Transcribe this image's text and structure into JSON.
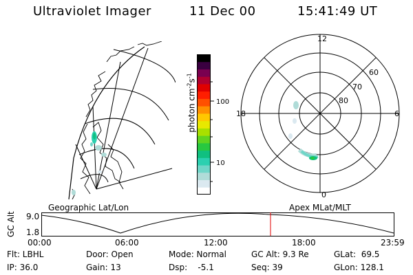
{
  "header": {
    "instrument": "Ultraviolet Imager",
    "date": "11 Dec 00",
    "time": "15:41:49 UT"
  },
  "left_panel": {
    "caption": "Geographic Lat/Lon"
  },
  "right_panel": {
    "caption": "Apex MLat/MLT",
    "mlt_labels": {
      "top": "12",
      "left": "18",
      "right": "6",
      "bottom": "0"
    },
    "lat_labels": [
      "60",
      "70",
      "80"
    ]
  },
  "colorbar": {
    "label_main": "photon cm",
    "label_exp1": "-2",
    "label_mid": "s",
    "label_exp2": "-1",
    "ticks": [
      "100",
      "10"
    ],
    "colors": [
      "#ffffff",
      "#dbe9f0",
      "#b0dcd8",
      "#6fd6c8",
      "#2bd0b0",
      "#10c080",
      "#28c840",
      "#60d420",
      "#a8e000",
      "#e8e800",
      "#ffc800",
      "#ff9000",
      "#ff5000",
      "#ff1e00",
      "#e00000",
      "#b00030",
      "#7a0050",
      "#3a0040",
      "#000000"
    ]
  },
  "altitude_plot": {
    "ylabel": "GC Alt",
    "ymax_label": "9.0",
    "ymin_label": "1.8",
    "xticks": [
      "00:00",
      "06:00",
      "12:00",
      "18:00",
      "23:59"
    ],
    "marker_color": "#e00000"
  },
  "status": {
    "row1": [
      {
        "name": "flt",
        "text": "Flt: LBHL"
      },
      {
        "name": "door",
        "text": "Door: Open"
      },
      {
        "name": "mode",
        "text": "Mode: Normal"
      },
      {
        "name": "gc-alt",
        "text": "GC Alt: 9.3 Re"
      },
      {
        "name": "glat",
        "text": "GLat:  69.5"
      }
    ],
    "row2": [
      {
        "name": "ip",
        "text": "IP: 36.0"
      },
      {
        "name": "gain",
        "text": "Gain: 13"
      },
      {
        "name": "dsp",
        "text": "Dsp:    -5.1"
      },
      {
        "name": "seq",
        "text": "Seq: 39"
      },
      {
        "name": "glon",
        "text": "GLon: 128.1"
      }
    ]
  }
}
